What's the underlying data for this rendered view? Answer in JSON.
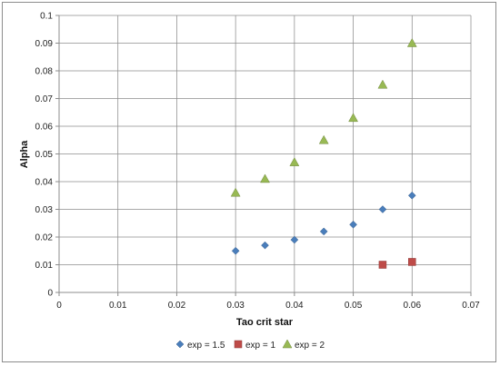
{
  "chart_data": {
    "type": "scatter",
    "title": "",
    "xlabel": "Tao crit star",
    "ylabel": "Alpha",
    "xlim": [
      0,
      0.07
    ],
    "ylim": [
      0,
      0.1
    ],
    "x_ticks": [
      0,
      0.01,
      0.02,
      0.03,
      0.04,
      0.05,
      0.06,
      0.07
    ],
    "y_ticks": [
      0,
      0.01,
      0.02,
      0.03,
      0.04,
      0.05,
      0.06,
      0.07,
      0.08,
      0.09,
      0.1
    ],
    "x_tick_labels": [
      "0",
      "0.01",
      "0.02",
      "0.03",
      "0.04",
      "0.05",
      "0.06",
      "0.07"
    ],
    "y_tick_labels": [
      "0",
      "0.01",
      "0.02",
      "0.03",
      "0.04",
      "0.05",
      "0.06",
      "0.07",
      "0.08",
      "0.09",
      "0.1"
    ],
    "grid": true,
    "legend_position": "bottom",
    "series": [
      {
        "name": "exp = 1.5",
        "marker": "diamond",
        "color": "#4a7ebb",
        "x": [
          0.03,
          0.035,
          0.04,
          0.045,
          0.05,
          0.055,
          0.06
        ],
        "y": [
          0.015,
          0.017,
          0.019,
          0.022,
          0.0245,
          0.03,
          0.035
        ]
      },
      {
        "name": "exp = 1",
        "marker": "square",
        "color": "#be4b48",
        "x": [
          0.055,
          0.06
        ],
        "y": [
          0.01,
          0.011
        ]
      },
      {
        "name": "exp = 2",
        "marker": "triangle",
        "color": "#98b954",
        "x": [
          0.03,
          0.035,
          0.04,
          0.045,
          0.05,
          0.055,
          0.06
        ],
        "y": [
          0.036,
          0.041,
          0.047,
          0.055,
          0.063,
          0.075,
          0.09
        ]
      }
    ]
  }
}
